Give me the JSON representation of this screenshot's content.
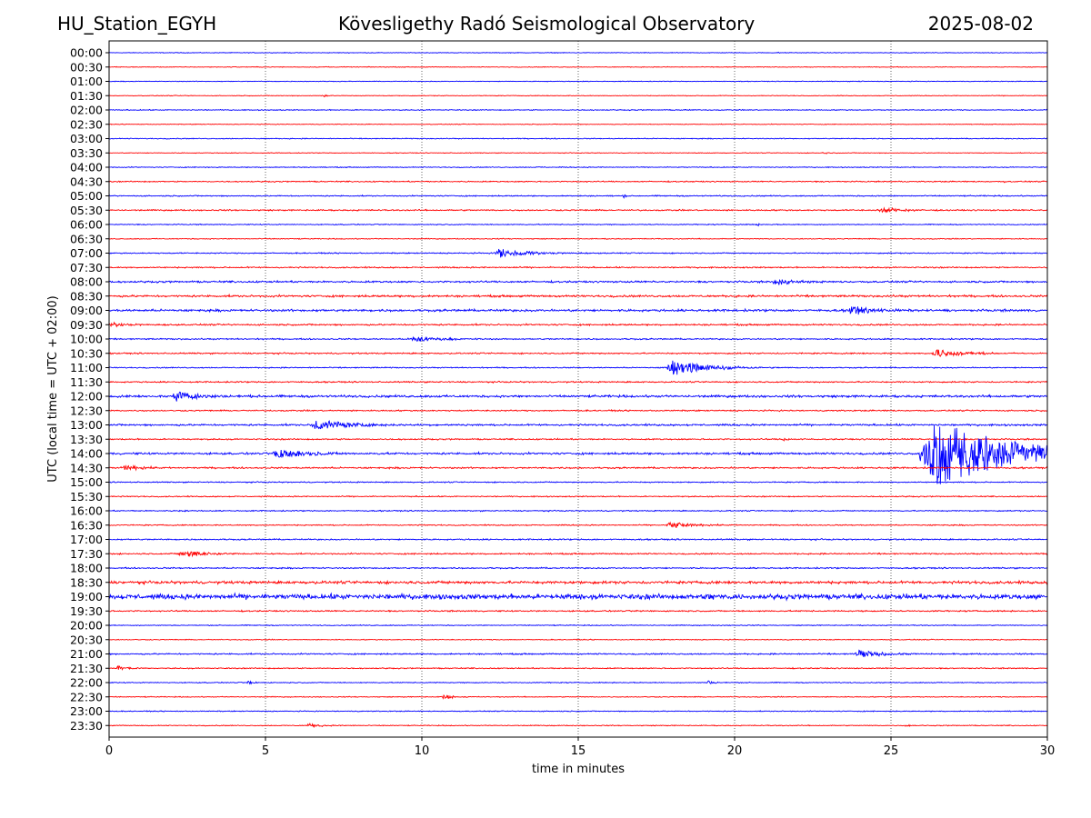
{
  "header": {
    "station": "HU_Station_EGYH",
    "observatory": "Kövesligethy Radó Seismological Observatory",
    "date": "2025-08-02"
  },
  "chart_data": {
    "type": "line",
    "title": "Kövesligethy Radó Seismological Observatory",
    "xlabel": "time in minutes",
    "ylabel": "UTC (local time = UTC + 02:00)",
    "xlim": [
      0,
      30
    ],
    "xticks": [
      0,
      5,
      10,
      15,
      20,
      25,
      30
    ],
    "xgrid": "dotted vertical lines at 5, 10, 15, 20, 25",
    "colors": {
      "even_trace": "#0000ff",
      "odd_trace": "#ff0000"
    },
    "series": [
      {
        "label": "00:00",
        "color": "#0000ff",
        "noise": 0.3,
        "events": [
          {
            "t": 21.3,
            "amp": 1.0,
            "dur": 0.4
          }
        ]
      },
      {
        "label": "00:30",
        "color": "#ff0000",
        "noise": 0.3,
        "events": [
          {
            "t": 3.9,
            "amp": 1.0,
            "dur": 0.3
          },
          {
            "t": 6.9,
            "amp": 1.0,
            "dur": 0.3
          }
        ]
      },
      {
        "label": "01:00",
        "color": "#0000ff",
        "noise": 0.3,
        "events": [
          {
            "t": 24.0,
            "amp": 1.0,
            "dur": 0.3
          }
        ]
      },
      {
        "label": "01:30",
        "color": "#ff0000",
        "noise": 0.3,
        "events": [
          {
            "t": 6.8,
            "amp": 2.0,
            "dur": 0.5
          }
        ]
      },
      {
        "label": "02:00",
        "color": "#0000ff",
        "noise": 0.4,
        "events": [
          {
            "t": 18.4,
            "amp": 1.0,
            "dur": 0.4
          }
        ]
      },
      {
        "label": "02:30",
        "color": "#ff0000",
        "noise": 0.3,
        "events": []
      },
      {
        "label": "03:00",
        "color": "#0000ff",
        "noise": 0.4,
        "events": []
      },
      {
        "label": "03:30",
        "color": "#ff0000",
        "noise": 0.3,
        "events": [
          {
            "t": 22.8,
            "amp": 2.0,
            "dur": 0.3
          }
        ]
      },
      {
        "label": "04:00",
        "color": "#0000ff",
        "noise": 0.4,
        "events": [
          {
            "t": 3.0,
            "amp": 1.0,
            "dur": 0.3
          },
          {
            "t": 13.7,
            "amp": 1.0,
            "dur": 0.4
          }
        ]
      },
      {
        "label": "04:30",
        "color": "#ff0000",
        "noise": 0.5,
        "events": [
          {
            "t": 28.6,
            "amp": 2.0,
            "dur": 0.2
          },
          {
            "t": 25.2,
            "amp": 1.0,
            "dur": 0.4
          }
        ]
      },
      {
        "label": "05:00",
        "color": "#0000ff",
        "noise": 0.5,
        "events": [
          {
            "t": 16.4,
            "amp": 3.0,
            "dur": 0.3
          }
        ]
      },
      {
        "label": "05:30",
        "color": "#ff0000",
        "noise": 0.6,
        "events": [
          {
            "t": 24.6,
            "amp": 5.0,
            "dur": 1.6
          }
        ]
      },
      {
        "label": "06:00",
        "color": "#0000ff",
        "noise": 0.4,
        "events": [
          {
            "t": 20.7,
            "amp": 3.0,
            "dur": 0.2
          }
        ]
      },
      {
        "label": "06:30",
        "color": "#ff0000",
        "noise": 0.4,
        "events": []
      },
      {
        "label": "07:00",
        "color": "#0000ff",
        "noise": 0.5,
        "events": [
          {
            "t": 12.3,
            "amp": 6.0,
            "dur": 2.6
          }
        ]
      },
      {
        "label": "07:30",
        "color": "#ff0000",
        "noise": 0.6,
        "events": []
      },
      {
        "label": "08:00",
        "color": "#0000ff",
        "noise": 0.8,
        "events": [
          {
            "t": 21.2,
            "amp": 5.0,
            "dur": 1.6
          }
        ]
      },
      {
        "label": "08:30",
        "color": "#ff0000",
        "noise": 0.9,
        "events": []
      },
      {
        "label": "09:00",
        "color": "#0000ff",
        "noise": 1.0,
        "events": [
          {
            "t": 23.6,
            "amp": 6.0,
            "dur": 2.0
          }
        ]
      },
      {
        "label": "09:30",
        "color": "#ff0000",
        "noise": 0.7,
        "events": [
          {
            "t": 0.0,
            "amp": 3.0,
            "dur": 1.4
          }
        ]
      },
      {
        "label": "10:00",
        "color": "#0000ff",
        "noise": 0.6,
        "events": [
          {
            "t": 9.6,
            "amp": 4.0,
            "dur": 2.4
          }
        ]
      },
      {
        "label": "10:30",
        "color": "#ff0000",
        "noise": 0.6,
        "events": [
          {
            "t": 26.3,
            "amp": 6.0,
            "dur": 2.4
          }
        ]
      },
      {
        "label": "11:00",
        "color": "#0000ff",
        "noise": 0.5,
        "events": [
          {
            "t": 17.8,
            "amp": 11.0,
            "dur": 3.0
          }
        ]
      },
      {
        "label": "11:30",
        "color": "#ff0000",
        "noise": 0.6,
        "events": []
      },
      {
        "label": "12:00",
        "color": "#0000ff",
        "noise": 1.0,
        "events": [
          {
            "t": 2.0,
            "amp": 8.0,
            "dur": 2.0
          }
        ]
      },
      {
        "label": "12:30",
        "color": "#ff0000",
        "noise": 0.6,
        "events": []
      },
      {
        "label": "13:00",
        "color": "#0000ff",
        "noise": 0.8,
        "events": [
          {
            "t": 6.4,
            "amp": 7.0,
            "dur": 3.2
          }
        ]
      },
      {
        "label": "13:30",
        "color": "#ff0000",
        "noise": 0.6,
        "events": [
          {
            "t": 21.5,
            "amp": 2.0,
            "dur": 0.8
          }
        ]
      },
      {
        "label": "14:00",
        "color": "#0000ff",
        "noise": 0.9,
        "events": [
          {
            "t": 5.2,
            "amp": 7.0,
            "dur": 2.6
          },
          {
            "t": 25.95,
            "amp": 48.0,
            "dur": 6.5
          }
        ]
      },
      {
        "label": "14:30",
        "color": "#ff0000",
        "noise": 0.7,
        "events": [
          {
            "t": 0.4,
            "amp": 4.0,
            "dur": 1.6
          }
        ]
      },
      {
        "label": "15:00",
        "color": "#0000ff",
        "noise": 0.5,
        "events": []
      },
      {
        "label": "15:30",
        "color": "#ff0000",
        "noise": 0.5,
        "events": []
      },
      {
        "label": "16:00",
        "color": "#0000ff",
        "noise": 0.5,
        "events": [
          {
            "t": 2.2,
            "amp": 2.0,
            "dur": 0.4
          }
        ]
      },
      {
        "label": "16:30",
        "color": "#ff0000",
        "noise": 0.5,
        "events": [
          {
            "t": 17.8,
            "amp": 4.0,
            "dur": 2.2
          }
        ]
      },
      {
        "label": "17:00",
        "color": "#0000ff",
        "noise": 0.6,
        "events": []
      },
      {
        "label": "17:30",
        "color": "#ff0000",
        "noise": 0.6,
        "events": [
          {
            "t": 2.2,
            "amp": 5.0,
            "dur": 2.2
          }
        ]
      },
      {
        "label": "18:00",
        "color": "#0000ff",
        "noise": 0.6,
        "events": []
      },
      {
        "label": "18:30",
        "color": "#ff0000",
        "noise": 1.2,
        "events": []
      },
      {
        "label": "19:00",
        "color": "#0000ff",
        "noise": 2.2,
        "events": [
          {
            "t": 14.6,
            "amp": 4.0,
            "dur": 0.5
          },
          {
            "t": 19.1,
            "amp": 4.0,
            "dur": 0.9
          }
        ]
      },
      {
        "label": "19:30",
        "color": "#ff0000",
        "noise": 0.6,
        "events": []
      },
      {
        "label": "20:00",
        "color": "#0000ff",
        "noise": 0.4,
        "events": []
      },
      {
        "label": "20:30",
        "color": "#ff0000",
        "noise": 0.4,
        "events": []
      },
      {
        "label": "21:00",
        "color": "#0000ff",
        "noise": 0.6,
        "events": [
          {
            "t": 23.8,
            "amp": 5.0,
            "dur": 2.2
          }
        ]
      },
      {
        "label": "21:30",
        "color": "#ff0000",
        "noise": 0.5,
        "events": [
          {
            "t": 0.2,
            "amp": 3.0,
            "dur": 1.2
          }
        ]
      },
      {
        "label": "22:00",
        "color": "#0000ff",
        "noise": 0.4,
        "events": [
          {
            "t": 4.4,
            "amp": 2.5,
            "dur": 0.6
          },
          {
            "t": 19.1,
            "amp": 2.5,
            "dur": 0.6
          }
        ]
      },
      {
        "label": "22:30",
        "color": "#ff0000",
        "noise": 0.4,
        "events": [
          {
            "t": 10.6,
            "amp": 3.0,
            "dur": 1.2
          }
        ]
      },
      {
        "label": "23:00",
        "color": "#0000ff",
        "noise": 0.4,
        "events": []
      },
      {
        "label": "23:30",
        "color": "#ff0000",
        "noise": 0.4,
        "events": [
          {
            "t": 6.3,
            "amp": 3.0,
            "dur": 1.2
          },
          {
            "t": 25.4,
            "amp": 2.0,
            "dur": 0.6
          }
        ]
      }
    ]
  }
}
